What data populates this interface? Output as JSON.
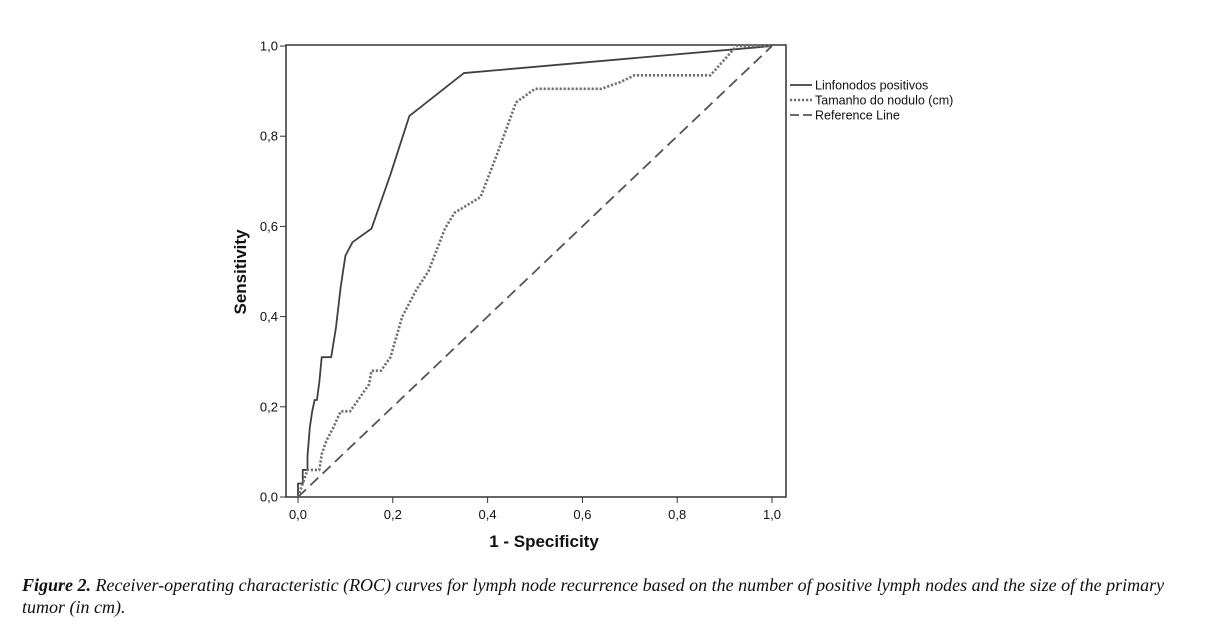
{
  "chart_data": {
    "type": "line",
    "xlabel": "1 - Specificity",
    "ylabel": "Sensitivity",
    "xlim": [
      0,
      1
    ],
    "ylim": [
      0,
      1
    ],
    "xticks": [
      "0,0",
      "0,2",
      "0,4",
      "0,6",
      "0,8",
      "1,0"
    ],
    "yticks": [
      "0,0",
      "0,2",
      "0,4",
      "0,6",
      "0,8",
      "1,0"
    ],
    "legend_position": "right",
    "series": [
      {
        "name": "Linfonodos positivos",
        "style": "solid",
        "color": "#404040",
        "x": [
          0.0,
          0.0,
          0.01,
          0.01,
          0.02,
          0.02,
          0.025,
          0.03,
          0.035,
          0.04,
          0.045,
          0.05,
          0.055,
          0.06,
          0.07,
          0.08,
          0.09,
          0.1,
          0.115,
          0.155,
          0.195,
          0.235,
          0.35,
          1.0
        ],
        "y": [
          0.0,
          0.03,
          0.03,
          0.06,
          0.06,
          0.09,
          0.155,
          0.19,
          0.215,
          0.215,
          0.255,
          0.31,
          0.31,
          0.31,
          0.31,
          0.375,
          0.465,
          0.535,
          0.565,
          0.595,
          0.715,
          0.845,
          0.94,
          1.0
        ]
      },
      {
        "name": "Tamanho do nodulo (cm)",
        "style": "dotted",
        "color": "#707070",
        "x": [
          0.0,
          0.01,
          0.02,
          0.03,
          0.045,
          0.05,
          0.06,
          0.075,
          0.09,
          0.1,
          0.11,
          0.13,
          0.15,
          0.155,
          0.175,
          0.195,
          0.22,
          0.25,
          0.275,
          0.31,
          0.33,
          0.385,
          0.42,
          0.46,
          0.5,
          0.55,
          0.64,
          0.68,
          0.71,
          0.75,
          0.8,
          0.87,
          0.9,
          0.925,
          0.935,
          0.97,
          1.0
        ],
        "y": [
          0.0,
          0.03,
          0.06,
          0.06,
          0.06,
          0.095,
          0.125,
          0.155,
          0.19,
          0.19,
          0.19,
          0.22,
          0.25,
          0.28,
          0.28,
          0.31,
          0.4,
          0.46,
          0.5,
          0.595,
          0.63,
          0.665,
          0.76,
          0.875,
          0.905,
          0.905,
          0.905,
          0.92,
          0.935,
          0.935,
          0.935,
          0.935,
          0.97,
          1.0,
          1.0,
          1.0,
          1.0
        ]
      },
      {
        "name": "Reference Line",
        "style": "dashed",
        "color": "#555555",
        "x": [
          0,
          1
        ],
        "y": [
          0,
          1
        ]
      }
    ]
  },
  "caption": {
    "label": "Figure 2.",
    "text": " Receiver-operating characteristic (ROC) curves for lymph node recurrence based on the number of positive lymph nodes and the size of the primary tumor (in cm)."
  }
}
